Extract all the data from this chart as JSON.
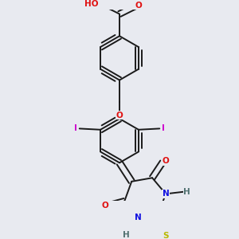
{
  "bg_color": "#e8eaf0",
  "bond_color": "#1a1a1a",
  "bond_width": 1.4,
  "atom_colors": {
    "O": "#e01010",
    "N": "#1010e0",
    "S": "#b8b800",
    "I": "#cc00cc",
    "H": "#507070",
    "C": "#1a1a1a"
  },
  "font_size": 7.5,
  "figsize": [
    3.0,
    3.0
  ],
  "dpi": 100
}
